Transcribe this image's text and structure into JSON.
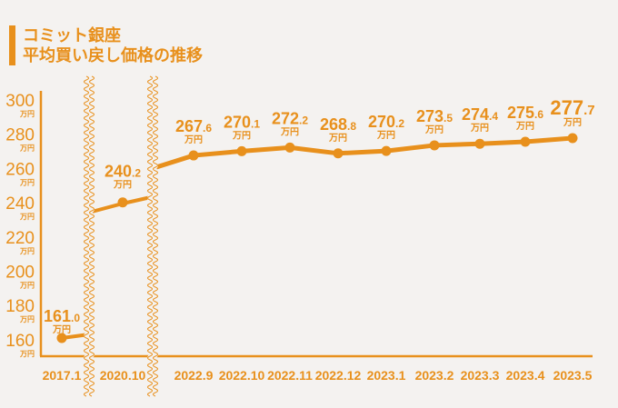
{
  "title": {
    "line1": "コミット銀座",
    "line2": "平均買い戻し価格の推移"
  },
  "colors": {
    "accent": "#e8901c",
    "background": "#f4f2f0"
  },
  "chart_data": {
    "type": "line",
    "title": "コミット銀座 平均買い戻し価格の推移",
    "unit": "万円",
    "categories": [
      "2017.1",
      "2020.10",
      "2022.9",
      "2022.10",
      "2022.11",
      "2022.12",
      "2023.1",
      "2023.2",
      "2023.3",
      "2023.4",
      "2023.5"
    ],
    "values": [
      161.0,
      240.2,
      267.6,
      270.1,
      272.2,
      268.8,
      270.2,
      273.5,
      274.4,
      275.6,
      277.7
    ],
    "yticks": [
      160,
      180,
      200,
      220,
      240,
      260,
      280,
      300
    ],
    "ylim": [
      160,
      300
    ],
    "axis_breaks_after": [
      "2017.1",
      "2020.10"
    ],
    "grid": false,
    "legend": "none"
  }
}
